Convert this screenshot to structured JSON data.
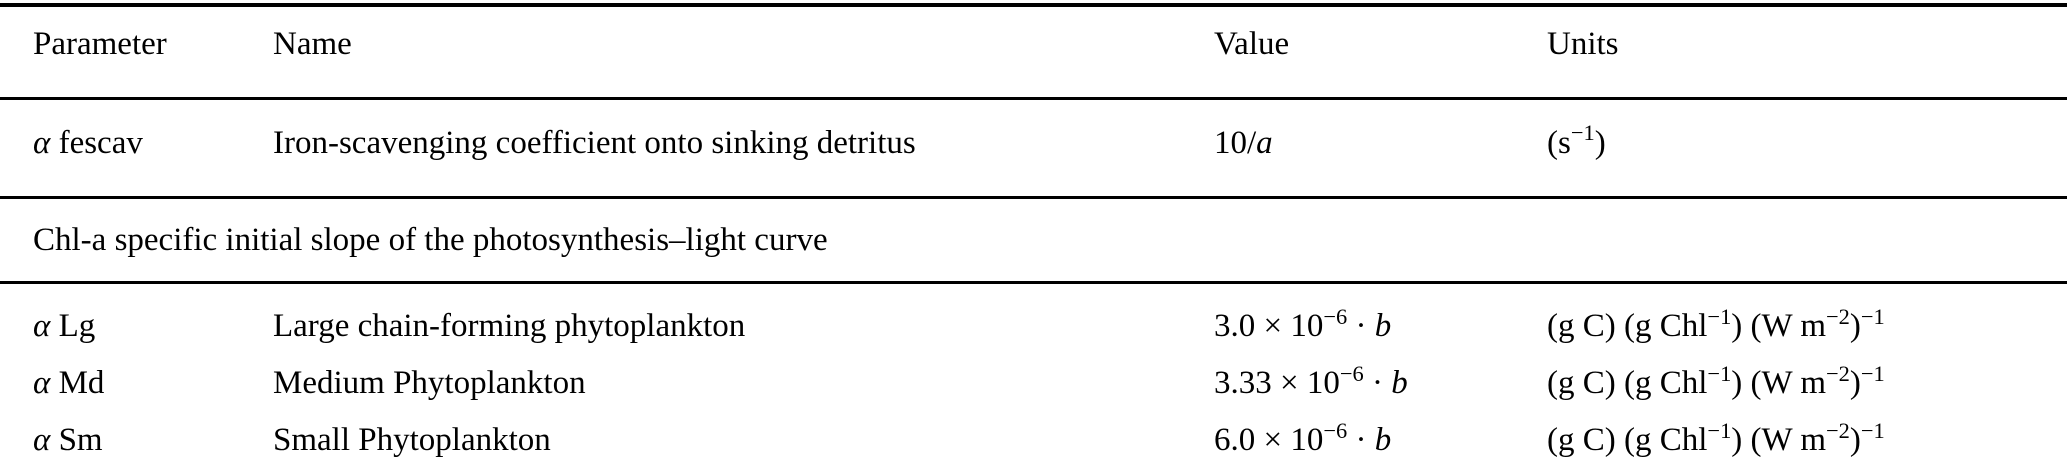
{
  "table": {
    "columns": [
      "Parameter",
      "Name",
      "Value",
      "Units"
    ],
    "sections": [
      {
        "rows": [
          {
            "parameter": [
              {
                "t": "α",
                "i": true
              },
              {
                "t": " fescav"
              }
            ],
            "name": "Iron-scavenging coefficient onto sinking detritus",
            "value": [
              {
                "t": "10/"
              },
              {
                "t": "a",
                "i": true
              }
            ],
            "units": [
              {
                "t": "(s"
              },
              {
                "t": "−1",
                "sup": true
              },
              {
                "t": ")"
              }
            ]
          }
        ]
      },
      {
        "header": "Chl-a specific initial slope of the photosynthesis–light curve",
        "rows": [
          {
            "parameter": [
              {
                "t": "α",
                "i": true
              },
              {
                "t": " Lg"
              }
            ],
            "name": "Large chain-forming phytoplankton",
            "value": [
              {
                "t": "3.0 × 10"
              },
              {
                "t": "−6",
                "sup": true
              },
              {
                "t": " · "
              },
              {
                "t": "b",
                "i": true
              }
            ],
            "units": [
              {
                "t": "(g C) (g Chl"
              },
              {
                "t": "−1",
                "sup": true
              },
              {
                "t": ") (W m"
              },
              {
                "t": "−2",
                "sup": true
              },
              {
                "t": ")"
              },
              {
                "t": "−1",
                "sup": true
              }
            ]
          },
          {
            "parameter": [
              {
                "t": "α",
                "i": true
              },
              {
                "t": " Md"
              }
            ],
            "name": "Medium Phytoplankton",
            "value": [
              {
                "t": "3.33 × 10"
              },
              {
                "t": "−6",
                "sup": true
              },
              {
                "t": " · "
              },
              {
                "t": "b",
                "i": true
              }
            ],
            "units": [
              {
                "t": "(g C) (g Chl"
              },
              {
                "t": "−1",
                "sup": true
              },
              {
                "t": ") (W m"
              },
              {
                "t": "−2",
                "sup": true
              },
              {
                "t": ")"
              },
              {
                "t": "−1",
                "sup": true
              }
            ]
          },
          {
            "parameter": [
              {
                "t": "α",
                "i": true
              },
              {
                "t": " Sm"
              }
            ],
            "name": "Small Phytoplankton",
            "value": [
              {
                "t": "6.0 × 10"
              },
              {
                "t": "−6",
                "sup": true
              },
              {
                "t": " · "
              },
              {
                "t": "b",
                "i": true
              }
            ],
            "units": [
              {
                "t": "(g C) (g Chl"
              },
              {
                "t": "−1",
                "sup": true
              },
              {
                "t": ") (W m"
              },
              {
                "t": "−2",
                "sup": true
              },
              {
                "t": ")"
              },
              {
                "t": "−1",
                "sup": true
              }
            ]
          }
        ]
      }
    ]
  }
}
